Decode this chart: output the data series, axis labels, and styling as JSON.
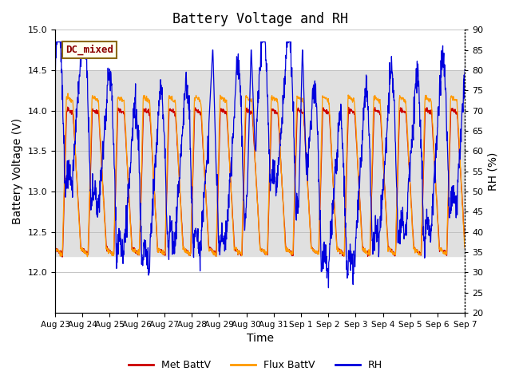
{
  "title": "Battery Voltage and RH",
  "xlabel": "Time",
  "ylabel_left": "Battery Voltage (V)",
  "ylabel_right": "RH (%)",
  "ylim_left": [
    11.5,
    15.0
  ],
  "ylim_right": [
    20,
    90
  ],
  "yticks_left": [
    12.0,
    12.5,
    13.0,
    13.5,
    14.0,
    14.5,
    15.0
  ],
  "yticks_right": [
    20,
    25,
    30,
    35,
    40,
    45,
    50,
    55,
    60,
    65,
    70,
    75,
    80,
    85,
    90
  ],
  "xtick_labels": [
    "Aug 23",
    "Aug 24",
    "Aug 25",
    "Aug 26",
    "Aug 27",
    "Aug 28",
    "Aug 29",
    "Aug 30",
    "Aug 31",
    "Sep 1",
    "Sep 2",
    "Sep 3",
    "Sep 4",
    "Sep 5",
    "Sep 6",
    "Sep 7"
  ],
  "annotation_text": "DC_mixed",
  "annotation_color": "#8B0000",
  "annotation_bg": "#fffff0",
  "annotation_border": "#8B6914",
  "legend_labels": [
    "Met BattV",
    "Flux BattV",
    "RH"
  ],
  "legend_colors": [
    "#cc0000",
    "#ff9900",
    "#0000dd"
  ],
  "met_battv_color": "#cc0000",
  "flux_battv_color": "#ff9900",
  "rh_color": "#0000dd",
  "grid_color": "#bbbbbb",
  "bg_band_ylow": 12.2,
  "bg_band_yhigh": 14.5,
  "bg_band_color": "#e0e0e0",
  "title_fontsize": 12,
  "tick_fontsize": 8,
  "label_fontsize": 10
}
